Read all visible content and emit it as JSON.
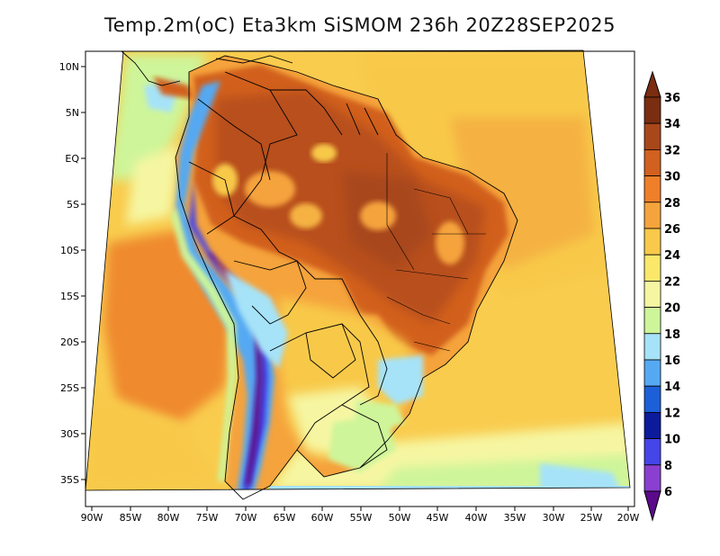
{
  "title": "Temp.2m(oC) Eta3km SiSMOM 236h 20Z28SEP2025",
  "axes": {
    "x_ticks": [
      "90W",
      "85W",
      "80W",
      "75W",
      "70W",
      "65W",
      "60W",
      "55W",
      "50W",
      "45W",
      "40W",
      "35W",
      "30W",
      "25W",
      "20W"
    ],
    "y_ticks": [
      "10N",
      "5N",
      "EQ",
      "5S",
      "10S",
      "15S",
      "20S",
      "25S",
      "30S",
      "35S"
    ]
  },
  "colorbar": {
    "labels": [
      "36",
      "34",
      "32",
      "30",
      "28",
      "26",
      "24",
      "22",
      "20",
      "18",
      "16",
      "14",
      "12",
      "10",
      "8",
      "6"
    ],
    "colors": [
      "#7a2d10",
      "#a8471a",
      "#d2601e",
      "#ef7f28",
      "#f5a33c",
      "#f8c94a",
      "#fbe86b",
      "#f6f6a2",
      "#cef59a",
      "#a6e3f8",
      "#55a9f2",
      "#1c5fd8",
      "#0b1b9c",
      "#4545e8",
      "#8a3fd0",
      "#5c0a8c"
    ]
  }
}
